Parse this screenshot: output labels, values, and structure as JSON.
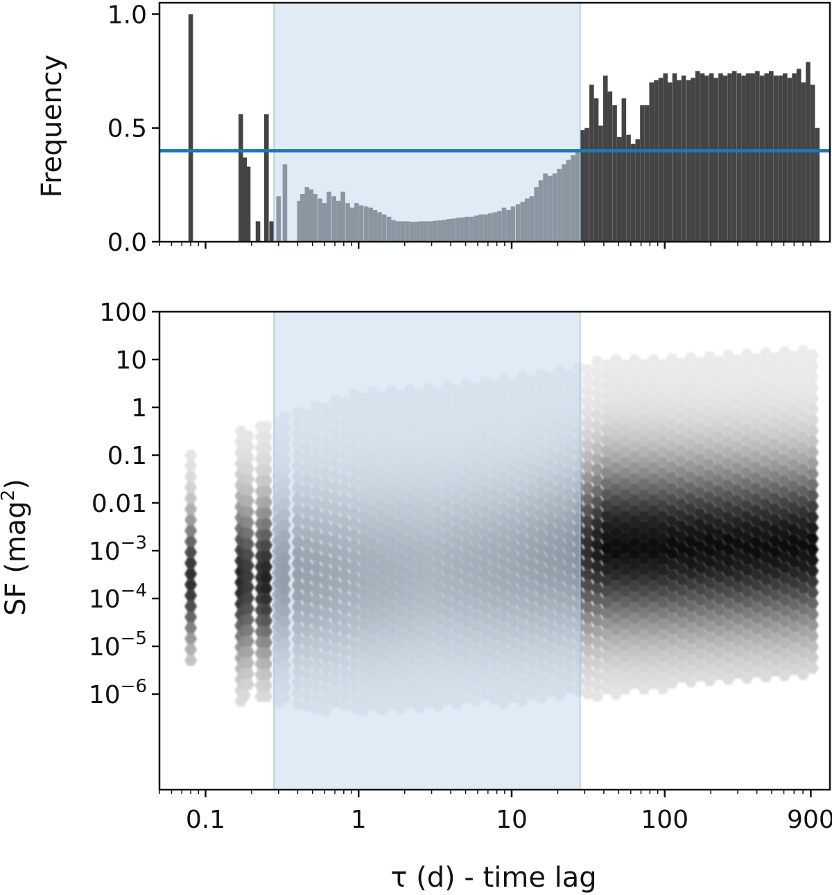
{
  "chart_data": [
    {
      "type": "bar",
      "panel": "top",
      "ylabel": "Frequency",
      "xlabel": "",
      "xscale": "log",
      "xlim": [
        0.05,
        1200
      ],
      "ylim": [
        0,
        1.05
      ],
      "yticks": [
        {
          "value": 0.0,
          "label": "0.0"
        },
        {
          "value": 0.5,
          "label": "0.5"
        },
        {
          "value": 1.0,
          "label": "1.0"
        }
      ],
      "bar_color": "#444444",
      "shaded_region": {
        "x_range": [
          0.28,
          28
        ],
        "color": "#c6dbef"
      },
      "threshold_line": {
        "y": 0.4,
        "color": "#1f77b4"
      },
      "bars": [
        [
          0.08,
          1.0
        ],
        [
          0.17,
          0.56
        ],
        [
          0.18,
          0.37
        ],
        [
          0.19,
          0.33
        ],
        [
          0.22,
          0.09
        ],
        [
          0.25,
          0.56
        ],
        [
          0.27,
          0.09
        ],
        [
          0.3,
          0.2
        ],
        [
          0.33,
          0.34
        ],
        [
          0.41,
          0.18
        ],
        [
          0.43,
          0.21
        ],
        [
          0.46,
          0.24
        ],
        [
          0.49,
          0.23
        ],
        [
          0.52,
          0.21
        ],
        [
          0.56,
          0.19
        ],
        [
          0.6,
          0.17
        ],
        [
          0.64,
          0.22
        ],
        [
          0.69,
          0.2
        ],
        [
          0.74,
          0.18
        ],
        [
          0.79,
          0.22
        ],
        [
          0.85,
          0.17
        ],
        [
          0.91,
          0.15
        ],
        [
          0.97,
          0.17
        ],
        [
          1.04,
          0.16
        ],
        [
          1.12,
          0.155
        ],
        [
          1.2,
          0.15
        ],
        [
          1.28,
          0.14
        ],
        [
          1.37,
          0.13
        ],
        [
          1.47,
          0.12
        ],
        [
          1.58,
          0.11
        ],
        [
          1.69,
          0.095
        ],
        [
          1.81,
          0.09
        ],
        [
          1.94,
          0.09
        ],
        [
          2.08,
          0.09
        ],
        [
          2.23,
          0.088
        ],
        [
          2.39,
          0.088
        ],
        [
          2.56,
          0.09
        ],
        [
          2.74,
          0.09
        ],
        [
          2.94,
          0.09
        ],
        [
          3.15,
          0.092
        ],
        [
          3.38,
          0.094
        ],
        [
          3.62,
          0.096
        ],
        [
          3.88,
          0.1
        ],
        [
          4.16,
          0.102
        ],
        [
          4.46,
          0.105
        ],
        [
          4.78,
          0.107
        ],
        [
          5.12,
          0.11
        ],
        [
          5.49,
          0.11
        ],
        [
          5.88,
          0.115
        ],
        [
          6.3,
          0.12
        ],
        [
          6.76,
          0.12
        ],
        [
          7.24,
          0.125
        ],
        [
          7.76,
          0.13
        ],
        [
          8.32,
          0.135
        ],
        [
          8.92,
          0.15
        ],
        [
          9.56,
          0.14
        ],
        [
          10.2,
          0.155
        ],
        [
          11,
          0.165
        ],
        [
          11.8,
          0.175
        ],
        [
          12.6,
          0.19
        ],
        [
          13.5,
          0.2
        ],
        [
          14.5,
          0.24
        ],
        [
          15.5,
          0.27
        ],
        [
          16.6,
          0.3
        ],
        [
          17.8,
          0.29
        ],
        [
          19.1,
          0.3
        ],
        [
          20.5,
          0.32
        ],
        [
          22,
          0.34
        ],
        [
          23.5,
          0.36
        ],
        [
          25.2,
          0.38
        ],
        [
          27,
          0.4
        ],
        [
          29,
          0.49
        ],
        [
          31,
          0.5
        ],
        [
          33.3,
          0.69
        ],
        [
          35.7,
          0.63
        ],
        [
          38.2,
          0.51
        ],
        [
          41,
          0.73
        ],
        [
          43.9,
          0.66
        ],
        [
          47.1,
          0.6
        ],
        [
          50.5,
          0.46
        ],
        [
          54.1,
          0.63
        ],
        [
          58,
          0.47
        ],
        [
          62.1,
          0.43
        ],
        [
          66.6,
          0.45
        ],
        [
          71.4,
          0.6
        ],
        [
          76.5,
          0.6
        ],
        [
          82,
          0.7
        ],
        [
          87.9,
          0.71
        ],
        [
          94.2,
          0.72
        ],
        [
          101,
          0.74
        ],
        [
          108,
          0.7
        ],
        [
          116,
          0.74
        ],
        [
          124,
          0.71
        ],
        [
          133,
          0.73
        ],
        [
          143,
          0.71
        ],
        [
          153,
          0.72
        ],
        [
          164,
          0.75
        ],
        [
          176,
          0.74
        ],
        [
          188,
          0.73
        ],
        [
          202,
          0.74
        ],
        [
          216,
          0.72
        ],
        [
          232,
          0.74
        ],
        [
          248,
          0.73
        ],
        [
          266,
          0.74
        ],
        [
          285,
          0.75
        ],
        [
          306,
          0.74
        ],
        [
          328,
          0.73
        ],
        [
          351,
          0.74
        ],
        [
          376,
          0.74
        ],
        [
          403,
          0.75
        ],
        [
          432,
          0.73
        ],
        [
          463,
          0.74
        ],
        [
          496,
          0.75
        ],
        [
          532,
          0.73
        ],
        [
          570,
          0.73
        ],
        [
          611,
          0.74
        ],
        [
          655,
          0.72
        ],
        [
          702,
          0.74
        ],
        [
          752,
          0.76
        ],
        [
          806,
          0.7
        ],
        [
          864,
          0.79
        ],
        [
          926,
          0.69
        ],
        [
          993,
          0.5
        ]
      ]
    },
    {
      "type": "heatmap",
      "panel": "bottom",
      "subtype": "hexbin",
      "ylabel": "SF (mag²)",
      "xlabel": "τ (d) - time lag",
      "xscale": "log",
      "yscale": "log",
      "xlim": [
        0.05,
        1200
      ],
      "ylim": [
        1e-08,
        100
      ],
      "xticks": [
        {
          "value": 0.1,
          "label": "0.1"
        },
        {
          "value": 1,
          "label": "1"
        },
        {
          "value": 10,
          "label": "10"
        },
        {
          "value": 100,
          "label": "100"
        },
        {
          "value": 900,
          "label": "900"
        }
      ],
      "yticks": [
        {
          "value": 100,
          "label": "100"
        },
        {
          "value": 10,
          "label": "10"
        },
        {
          "value": 1,
          "label": "1"
        },
        {
          "value": 0.1,
          "label": "0.1"
        },
        {
          "value": 0.01,
          "label": "0.01"
        },
        {
          "value": 0.001,
          "mant": "10",
          "exp": "−3"
        },
        {
          "value": 0.0001,
          "mant": "10",
          "exp": "−4"
        },
        {
          "value": 1e-05,
          "mant": "10",
          "exp": "−5"
        },
        {
          "value": 1e-06,
          "mant": "10",
          "exp": "−6"
        }
      ],
      "colormap": "greys",
      "shaded_region": {
        "x_range": [
          0.28,
          28
        ],
        "color": "#c6dbef"
      },
      "density_columns": [
        {
          "x": 0.08,
          "log_sf_center": -3.6,
          "log_sf_spread": 0.95,
          "log_sf_min": -5.4,
          "log_sf_max": -1.0,
          "peak": 0.8
        },
        {
          "x": 0.17,
          "log_sf_center": -3.6,
          "log_sf_spread": 1.1,
          "log_sf_min": -6.3,
          "log_sf_max": -0.5,
          "peak": 0.85
        },
        {
          "x": 0.18,
          "log_sf_center": -3.6,
          "log_sf_spread": 1.1,
          "log_sf_min": -6.2,
          "log_sf_max": -0.6,
          "peak": 0.8
        },
        {
          "x": 0.19,
          "log_sf_center": -3.6,
          "log_sf_spread": 1.1,
          "log_sf_min": -6.0,
          "log_sf_max": -0.6,
          "peak": 0.75
        },
        {
          "x": 0.23,
          "log_sf_center": -3.6,
          "log_sf_spread": 1.1,
          "log_sf_min": -6.1,
          "log_sf_max": -0.4,
          "peak": 0.8
        },
        {
          "x": 0.25,
          "log_sf_center": -3.6,
          "log_sf_spread": 1.1,
          "log_sf_min": -6.1,
          "log_sf_max": -0.4,
          "peak": 0.85
        },
        {
          "x": 0.3,
          "log_sf_center": -3.5,
          "log_sf_spread": 1.1,
          "log_sf_min": -6.2,
          "log_sf_max": -0.3,
          "peak": 0.6
        },
        {
          "x": 0.33,
          "log_sf_center": -3.5,
          "log_sf_spread": 1.1,
          "log_sf_min": -6.2,
          "log_sf_max": -0.2,
          "peak": 0.65
        },
        {
          "x": 0.5,
          "log_sf_center": -3.5,
          "log_sf_spread": 1.15,
          "log_sf_min": -6.4,
          "log_sf_max": 0.0,
          "peak": 0.6
        },
        {
          "x": 1.0,
          "log_sf_center": -3.5,
          "log_sf_spread": 1.15,
          "log_sf_min": -6.4,
          "log_sf_max": 0.3,
          "peak": 0.5
        },
        {
          "x": 3.0,
          "log_sf_center": -3.4,
          "log_sf_spread": 1.15,
          "log_sf_min": -6.3,
          "log_sf_max": 0.4,
          "peak": 0.42
        },
        {
          "x": 10,
          "log_sf_center": -3.3,
          "log_sf_spread": 1.15,
          "log_sf_min": -6.2,
          "log_sf_max": 0.6,
          "peak": 0.55
        },
        {
          "x": 25,
          "log_sf_center": -3.1,
          "log_sf_spread": 1.2,
          "log_sf_min": -6.0,
          "log_sf_max": 0.8,
          "peak": 0.7
        },
        {
          "x": 40,
          "log_sf_center": -2.9,
          "log_sf_spread": 1.2,
          "log_sf_min": -6.1,
          "log_sf_max": 1.0,
          "peak": 0.95
        },
        {
          "x": 100,
          "log_sf_center": -2.9,
          "log_sf_spread": 1.2,
          "log_sf_min": -5.9,
          "log_sf_max": 1.0,
          "peak": 0.95
        },
        {
          "x": 900,
          "log_sf_center": -2.9,
          "log_sf_spread": 1.2,
          "log_sf_min": -5.6,
          "log_sf_max": 1.2,
          "peak": 0.95
        }
      ]
    }
  ]
}
